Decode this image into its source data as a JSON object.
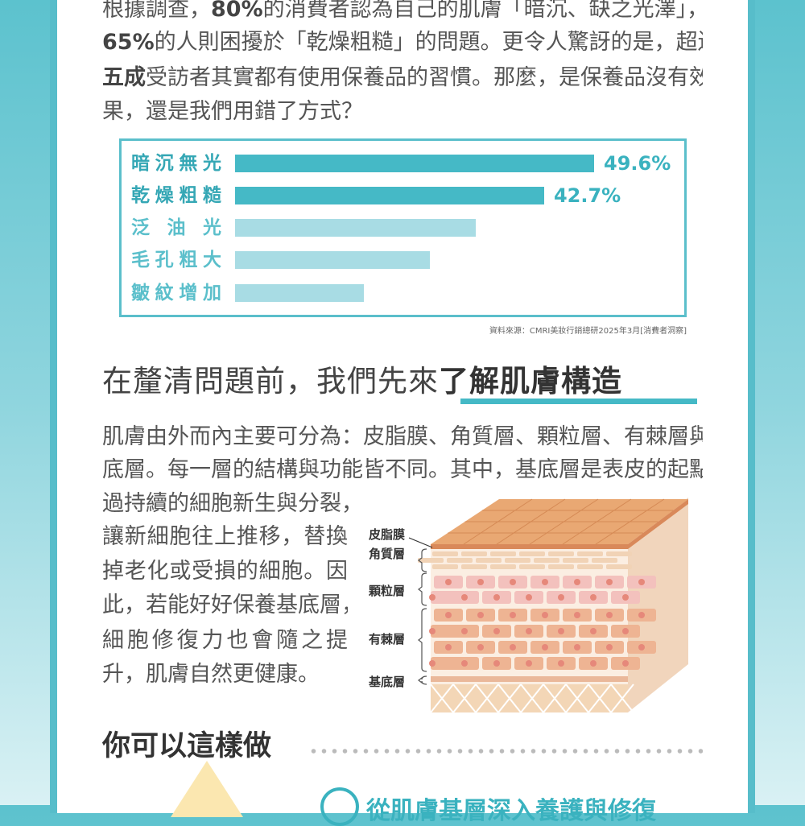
{
  "intro": {
    "lines": [
      [
        "根據調查，",
        "80%",
        "的消費者認為自己的肌膚「暗沉、缺之光澤」，"
      ],
      [
        "",
        "65%",
        "的人則困擾於「乾燥粗糙」的問題。更令人驚訝的是，超過"
      ],
      [
        "",
        "五成",
        "受訪者其實都有使用保養品的習慣。那麼，是保養品沒有效"
      ],
      [
        "果，還是我們用錯了方式？",
        "",
        ""
      ]
    ]
  },
  "chart_data": {
    "type": "bar",
    "orientation": "horizontal",
    "categories": [
      "暗沉無光",
      "乾燥粗糙",
      "泛 油 光",
      "毛孔粗大",
      "皺紋增加"
    ],
    "values": [
      49.6,
      42.7,
      33.3,
      26.9,
      17.8
    ],
    "value_labels": [
      "49.6%",
      "42.7%",
      "",
      "",
      ""
    ],
    "highlight": [
      true,
      true,
      false,
      false,
      false
    ],
    "colors": {
      "highlight": "#45b9c6",
      "normal": "#a8dce4",
      "label_highlight": "#35a7b5",
      "label_normal": "#5bbfcb"
    },
    "xlim": [
      0,
      50
    ],
    "source": "資料來源：CMRI美妝行銷總研2025年3月[消費者洞察]"
  },
  "section": {
    "title_plain": "在釐清問題前，我們先來",
    "title_bold": "了解肌膚構造",
    "lines": [
      "肌膚由外而內主要可分為：皮脂膜、角質層、顆粒層、有棘層與基",
      "底層。每一層的結構與功能皆不同。其中，基底層是表皮的起點，透",
      "過持續的細胞新生與分裂，",
      "讓新細胞往上推移，替換",
      "掉老化或受損的細胞。因",
      "此，若能好好保養基底層，",
      "細胞修復力也會隨之提",
      "升，肌膚自然更健康。"
    ]
  },
  "diagram": {
    "labels": [
      "皮脂膜",
      "角質層",
      "顆粒層",
      "有棘層",
      "基底層"
    ]
  },
  "action": {
    "title": "你可以這樣做",
    "step1": "從肌膚基層深入養護與修復"
  },
  "colors": {
    "accent": "#45b9c6",
    "text": "#555555"
  }
}
